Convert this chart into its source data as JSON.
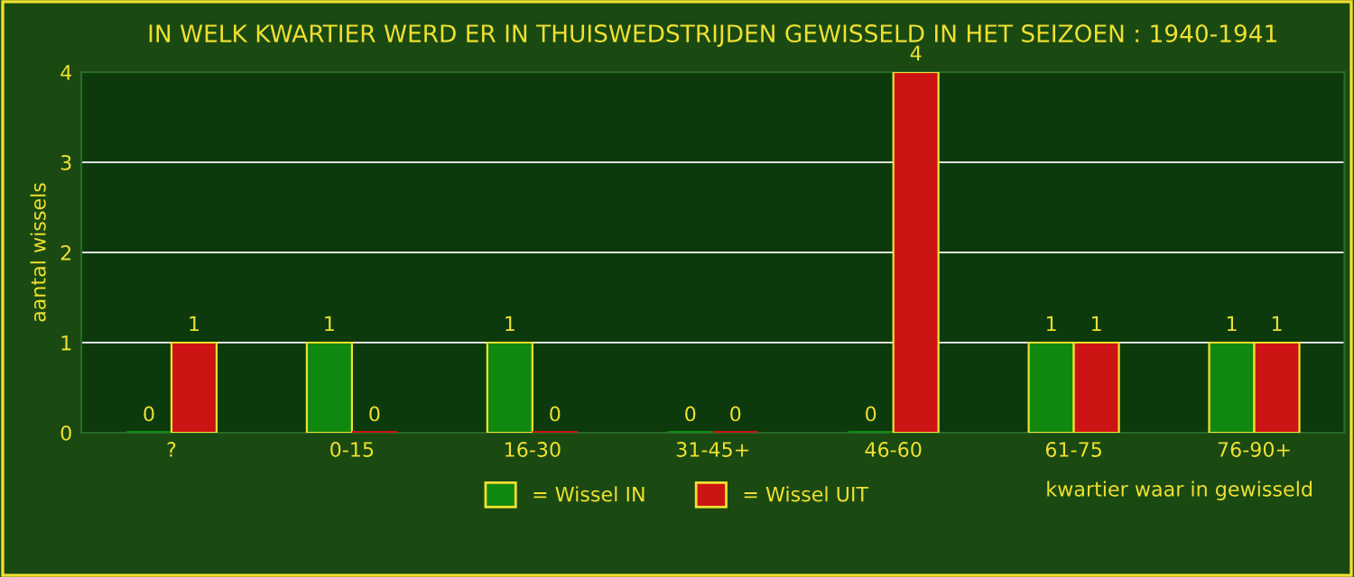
{
  "chart_data": {
    "type": "bar",
    "title": "IN WELK KWARTIER WERD ER IN THUISWEDSTRIJDEN GEWISSELD IN HET SEIZOEN : 1940-1941",
    "xlabel": "kwartier waar in gewisseld",
    "ylabel": "aantal wissels",
    "categories": [
      "?",
      "0-15",
      "16-30",
      "31-45+",
      "46-60",
      "61-75",
      "76-90+"
    ],
    "series": [
      {
        "name": "= Wissel IN",
        "color": "#108810",
        "values": [
          0,
          1,
          1,
          0,
          0,
          1,
          1
        ]
      },
      {
        "name": "= Wissel UIT",
        "color": "#cc1414",
        "values": [
          1,
          0,
          0,
          0,
          4,
          1,
          1
        ]
      }
    ],
    "ylim": [
      0,
      4
    ],
    "yticks": [
      0,
      1,
      2,
      3,
      4
    ],
    "grid": "y",
    "legend": "bottom",
    "data_labels": true
  }
}
